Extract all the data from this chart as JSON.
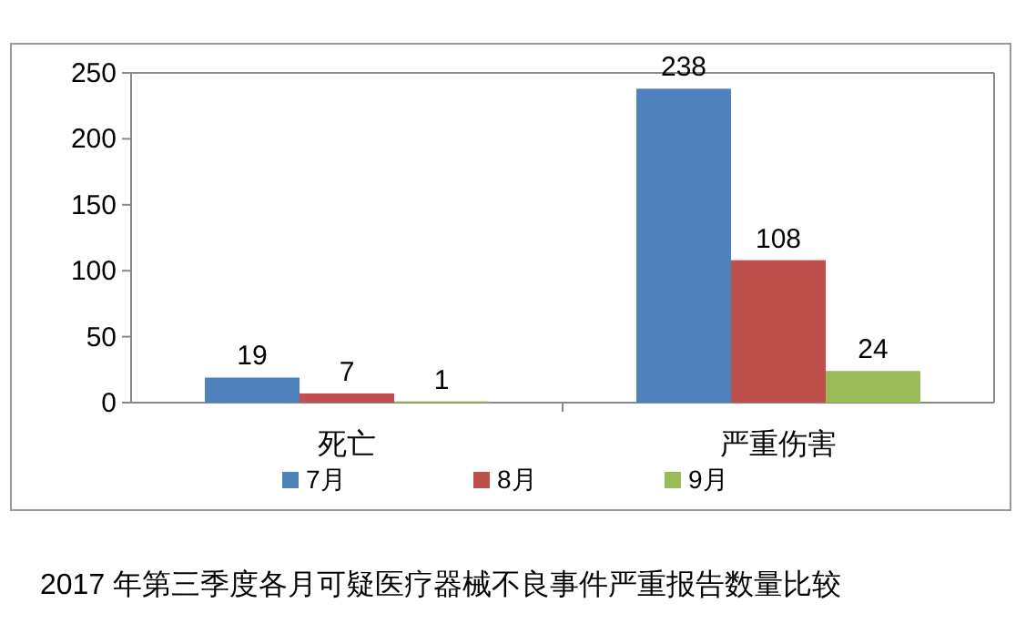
{
  "chart_data": {
    "type": "bar",
    "categories": [
      "死亡",
      "严重伤害"
    ],
    "series": [
      {
        "name": "7月",
        "color": "#4f81bd",
        "values": [
          19,
          238
        ]
      },
      {
        "name": "8月",
        "color": "#c0504d",
        "values": [
          7,
          108
        ]
      },
      {
        "name": "9月",
        "color": "#9bbb59",
        "values": [
          1,
          24
        ]
      }
    ],
    "ylim": [
      0,
      250
    ],
    "yticks": [
      0,
      50,
      100,
      150,
      200,
      250
    ],
    "data_labels": true,
    "legend": "bottom",
    "grid": false,
    "annotations": [
      "2017 年第三季度各月可疑医疗器械不良事件严重报告数量比较"
    ]
  }
}
